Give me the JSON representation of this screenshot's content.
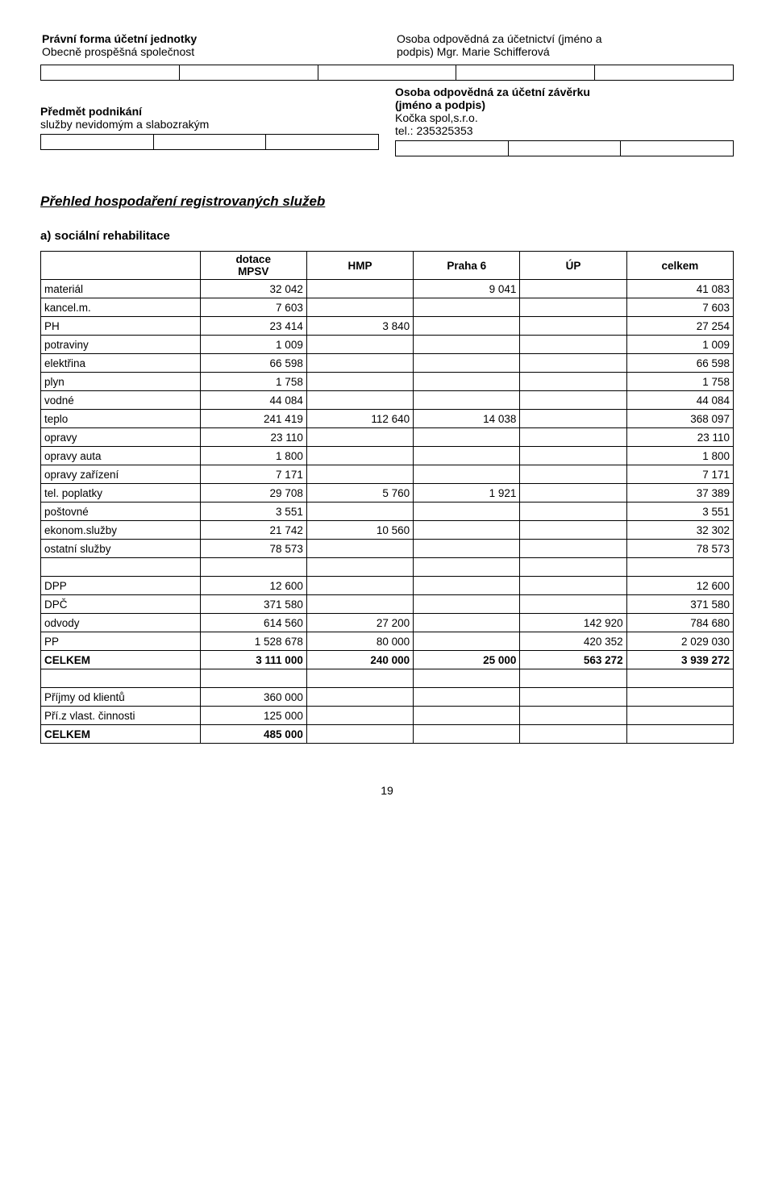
{
  "header": {
    "left_block1_line1": "Právní forma účetní jednotky",
    "left_block1_line2": "Obecně prospěšná společnost",
    "right_block1_line1": "Osoba odpovědná za účetnictví (jméno a",
    "right_block1_line2": "podpis) Mgr. Marie Schifferová",
    "left_block2_line1": "Předmět podnikání",
    "left_block2_line2": "služby nevidomým a slabozrakým",
    "right_block2_line1": "Osoba odpovědná za účetní závěrku",
    "right_block2_line2": "(jméno a podpis)",
    "right_block2_line3": "Kočka spol,s.r.o.",
    "right_block2_line4": "tel.: 235325353"
  },
  "title": "Přehled hospodaření registrovaných služeb",
  "section_a": "a) sociální rehabilitace",
  "table": {
    "columns": [
      "",
      "dotace MPSV",
      "HMP",
      "Praha 6",
      "ÚP",
      "celkem"
    ],
    "rows": [
      {
        "label": "materiál",
        "c": [
          "32 042",
          "",
          "9 041",
          "",
          "41 083"
        ]
      },
      {
        "label": "kancel.m.",
        "c": [
          "7 603",
          "",
          "",
          "",
          "7 603"
        ]
      },
      {
        "label": "PH",
        "c": [
          "23 414",
          "3 840",
          "",
          "",
          "27 254"
        ]
      },
      {
        "label": "potraviny",
        "c": [
          "1 009",
          "",
          "",
          "",
          "1 009"
        ]
      },
      {
        "label": "elektřina",
        "c": [
          "66 598",
          "",
          "",
          "",
          "66 598"
        ]
      },
      {
        "label": "plyn",
        "c": [
          "1 758",
          "",
          "",
          "",
          "1 758"
        ]
      },
      {
        "label": "vodné",
        "c": [
          "44 084",
          "",
          "",
          "",
          "44 084"
        ]
      },
      {
        "label": "teplo",
        "c": [
          "241 419",
          "112 640",
          "14 038",
          "",
          "368 097"
        ]
      },
      {
        "label": "opravy",
        "c": [
          "23 110",
          "",
          "",
          "",
          "23 110"
        ]
      },
      {
        "label": "opravy auta",
        "c": [
          "1 800",
          "",
          "",
          "",
          "1 800"
        ]
      },
      {
        "label": "opravy zařízení",
        "c": [
          "7 171",
          "",
          "",
          "",
          "7 171"
        ]
      },
      {
        "label": "tel. poplatky",
        "c": [
          "29 708",
          "5 760",
          "1 921",
          "",
          "37 389"
        ]
      },
      {
        "label": "poštovné",
        "c": [
          "3 551",
          "",
          "",
          "",
          "3 551"
        ]
      },
      {
        "label": "ekonom.služby",
        "c": [
          "21 742",
          "10 560",
          "",
          "",
          "32 302"
        ]
      },
      {
        "label": "ostatní služby",
        "c": [
          "78 573",
          "",
          "",
          "",
          "78 573"
        ]
      }
    ],
    "blank_row_1": true,
    "rows2": [
      {
        "label": "DPP",
        "c": [
          "12 600",
          "",
          "",
          "",
          "12 600"
        ]
      },
      {
        "label": "DPČ",
        "c": [
          "371 580",
          "",
          "",
          "",
          "371 580"
        ]
      },
      {
        "label": "odvody",
        "c": [
          "614 560",
          "27 200",
          "",
          "142 920",
          "784 680"
        ]
      },
      {
        "label": "PP",
        "c": [
          "1 528 678",
          "80 000",
          "",
          "420 352",
          "2 029 030"
        ]
      }
    ],
    "total_row": {
      "label": "CELKEM",
      "c": [
        "3 111 000",
        "240 000",
        "25 000",
        "563 272",
        "3 939 272"
      ],
      "bold": true
    },
    "blank_row_2": true,
    "rows3": [
      {
        "label": "Příjmy od klientů",
        "c": [
          "360 000",
          "",
          "",
          "",
          ""
        ]
      },
      {
        "label": "Pří.z vlast. činnosti",
        "c": [
          "125 000",
          "",
          "",
          "",
          ""
        ]
      }
    ],
    "total_row2": {
      "label": "CELKEM",
      "c": [
        "485 000",
        "",
        "",
        "",
        ""
      ],
      "bold": true
    }
  },
  "page_number": "19"
}
